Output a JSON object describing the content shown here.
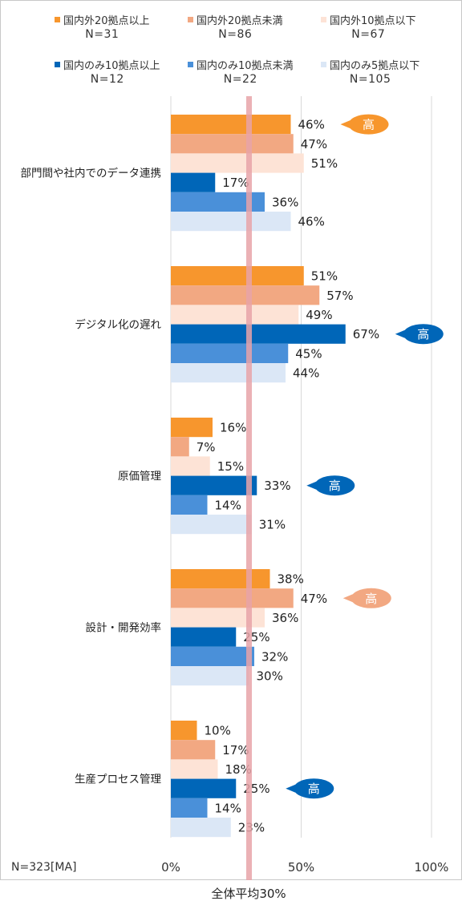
{
  "chart_data": {
    "type": "bar",
    "orientation": "horizontal",
    "categories": [
      "部門間や社内でのデータ連携",
      "デジタル化の遅れ",
      "原価管理",
      "設計・開発効率",
      "生産プロセス管理"
    ],
    "series": [
      {
        "name": "国内外20拠点以上",
        "n_label": "N=31",
        "color": "#f7962d",
        "values": [
          46,
          51,
          16,
          38,
          10
        ]
      },
      {
        "name": "国内外20拠点未満",
        "n_label": "N=86",
        "color": "#f2a882",
        "values": [
          47,
          57,
          7,
          47,
          17
        ]
      },
      {
        "name": "国内外10拠点以下",
        "n_label": "N=67",
        "color": "#fde3d6",
        "values": [
          51,
          49,
          15,
          36,
          18
        ]
      },
      {
        "name": "国内のみ10拠点以上",
        "n_label": "N=12",
        "color": "#0066b8",
        "values": [
          17,
          67,
          33,
          25,
          25
        ]
      },
      {
        "name": "国内のみ10拠点未満",
        "n_label": "N=22",
        "color": "#4a90d9",
        "values": [
          36,
          45,
          14,
          32,
          14
        ]
      },
      {
        "name": "国内のみ5拠点以下",
        "n_label": "N=105",
        "color": "#dbe7f6",
        "values": [
          46,
          44,
          31,
          30,
          23
        ]
      }
    ],
    "value_suffix": "%",
    "xlim": [
      0,
      100
    ],
    "x_ticks": [
      "0%",
      "50%",
      "100%"
    ],
    "gridlines": true,
    "legend_position": "top",
    "reference_line": {
      "value": 30,
      "label": "全体平均30%",
      "color": "#e8a3a8"
    },
    "sample_note": "N=323[MA]",
    "highlight_text": "高",
    "highlights": [
      {
        "category": 0,
        "series": 0,
        "color": "#f7962d"
      },
      {
        "category": 1,
        "series": 3,
        "color": "#0066b8"
      },
      {
        "category": 2,
        "series": 3,
        "color": "#0066b8"
      },
      {
        "category": 3,
        "series": 1,
        "color": "#f2a882"
      },
      {
        "category": 4,
        "series": 3,
        "color": "#0066b8"
      }
    ]
  }
}
